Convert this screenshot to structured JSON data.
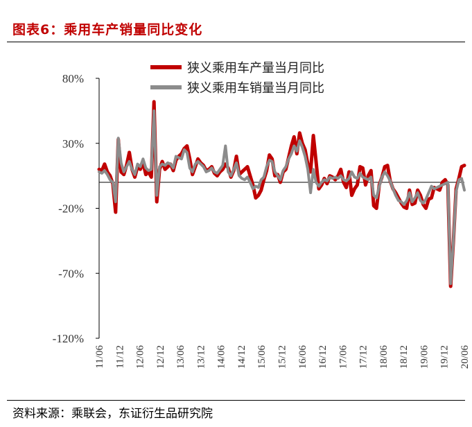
{
  "header": {
    "title": "图表6：乘用车产销量同比变化"
  },
  "footer": {
    "source": "资料来源：乘联会，东证衍生品研究院"
  },
  "colors": {
    "title": "#c00000",
    "production": "#c00000",
    "sales": "#8c8c8c",
    "axis": "#000000"
  },
  "chart_data": {
    "type": "line",
    "title": "",
    "xlabel": "",
    "ylabel": "",
    "ylim": [
      -120,
      80
    ],
    "yticks": [
      80,
      30,
      -20,
      -70,
      -120
    ],
    "ytick_labels": [
      "80%",
      "30%",
      "-20%",
      "-70%",
      "-120%"
    ],
    "xtick_labels": [
      "11/06",
      "11/12",
      "12/06",
      "12/12",
      "13/06",
      "13/12",
      "14/06",
      "14/12",
      "15/06",
      "15/12",
      "16/06",
      "16/12",
      "17/06",
      "17/12",
      "18/06",
      "18/12",
      "19/06",
      "19/12",
      "20/06"
    ],
    "legend": {
      "position": "top",
      "entries": [
        "狭义乘用车产量当月同比",
        "狭义乘用车销量当月同比"
      ]
    },
    "x_start": "2011/06",
    "x_end": "2020/06",
    "grid": false,
    "series": [
      {
        "name": "狭义乘用车产量当月同比",
        "color": "#c00000",
        "values": [
          10,
          9,
          14,
          8,
          5,
          -1,
          -23,
          33,
          8,
          6,
          13,
          23,
          10,
          4,
          12,
          10,
          15,
          6,
          8,
          4,
          62,
          -15,
          10,
          16,
          10,
          12,
          14,
          9,
          17,
          20,
          22,
          26,
          28,
          18,
          6,
          12,
          18,
          15,
          13,
          9,
          10,
          12,
          7,
          5,
          8,
          10,
          14,
          11,
          4,
          9,
          20,
          6,
          8,
          10,
          12,
          5,
          -2,
          -12,
          -10,
          -6,
          2,
          9,
          21,
          18,
          5,
          6,
          0,
          8,
          10,
          19,
          28,
          35,
          22,
          38,
          30,
          25,
          14,
          8,
          36,
          16,
          -5,
          -2,
          3,
          -1,
          5,
          4,
          2,
          5,
          10,
          0,
          -4,
          8,
          -10,
          -5,
          -2,
          12,
          11,
          -2,
          5,
          9,
          -18,
          -20,
          -2,
          4,
          12,
          13,
          1,
          -5,
          -8,
          -12,
          -16,
          -19,
          -20,
          -6,
          -17,
          -16,
          -6,
          -10,
          -17,
          -20,
          -13,
          -12,
          -4,
          -5,
          -6,
          0,
          2,
          -2,
          -80,
          -45,
          -5,
          3,
          12,
          13
        ]
      },
      {
        "name": "狭义乘用车销量当月同比",
        "color": "#8c8c8c",
        "values": [
          8,
          7,
          9,
          6,
          2,
          0,
          -15,
          34,
          15,
          8,
          12,
          16,
          10,
          6,
          14,
          12,
          18,
          11,
          9,
          10,
          55,
          -10,
          12,
          14,
          13,
          15,
          14,
          11,
          20,
          19,
          18,
          25,
          23,
          11,
          8,
          14,
          16,
          14,
          12,
          8,
          9,
          11,
          8,
          7,
          10,
          13,
          28,
          8,
          5,
          10,
          15,
          5,
          3,
          2,
          4,
          0,
          -5,
          -3,
          -4,
          2,
          4,
          12,
          17,
          16,
          8,
          5,
          2,
          9,
          12,
          18,
          22,
          28,
          24,
          32,
          27,
          20,
          10,
          -8,
          10,
          0,
          -3,
          0,
          2,
          1,
          4,
          3,
          4,
          3,
          5,
          2,
          1,
          3,
          8,
          4,
          3,
          7,
          4,
          3,
          2,
          4,
          -10,
          -12,
          -3,
          4,
          8,
          5,
          1,
          -5,
          -10,
          -14,
          -15,
          -17,
          -14,
          -8,
          -15,
          -12,
          -8,
          -14,
          -16,
          -13,
          -8,
          -3,
          -5,
          -4,
          -3,
          -2,
          -1,
          0,
          -78,
          -45,
          -7,
          2,
          3,
          -6
        ]
      }
    ]
  }
}
